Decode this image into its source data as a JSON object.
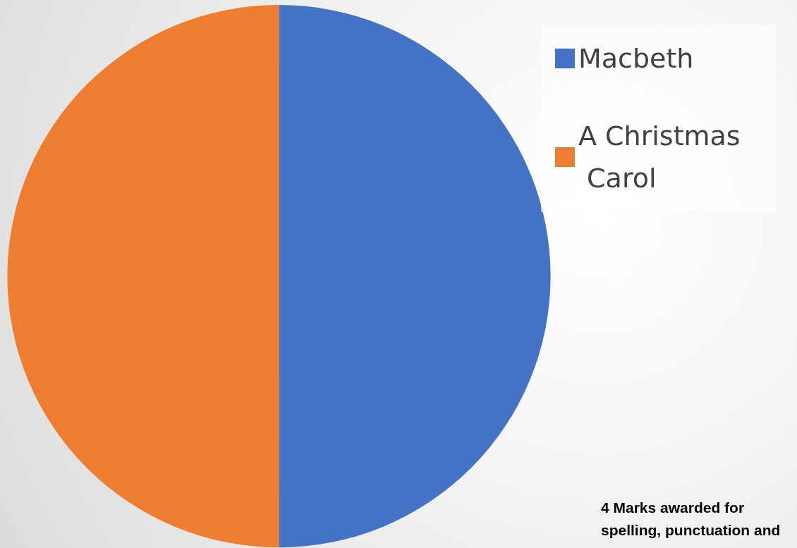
{
  "chart_data": {
    "type": "pie",
    "categories": [
      "Macbeth",
      "A Christmas Carol"
    ],
    "values": [
      50,
      50
    ],
    "colors": [
      "#4472c4",
      "#ed7d31"
    ],
    "legend": "top right",
    "annotations": [
      "4 Marks awarded for spelling, punctuation and"
    ]
  }
}
